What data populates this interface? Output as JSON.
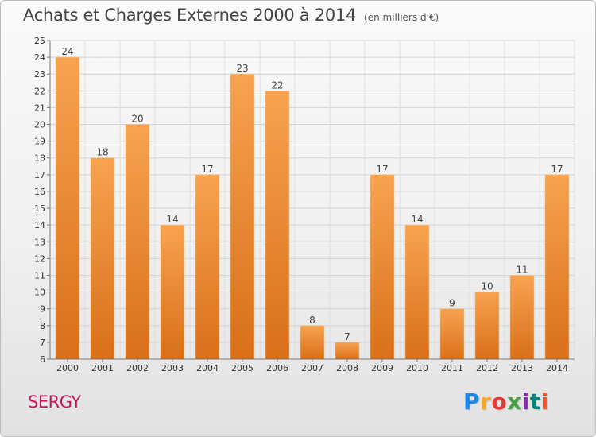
{
  "header": {
    "title": "Achats et Charges Externes 2000 à 2014",
    "subtitle": "(en milliers d'€)"
  },
  "footer": {
    "location": "SERGY",
    "logo_text": "Proxiti",
    "logo_colors": [
      "#1e88e5",
      "#f9a825",
      "#e53935",
      "#43a047",
      "#8e24aa",
      "#00897b",
      "#f4511e"
    ]
  },
  "colors": {
    "bar_top": "#f7a350",
    "bar_bottom": "#d96f19",
    "location_text": "#c2185b"
  },
  "chart_data": {
    "type": "bar",
    "categories": [
      "2000",
      "2001",
      "2002",
      "2003",
      "2004",
      "2005",
      "2006",
      "2007",
      "2008",
      "2009",
      "2010",
      "2011",
      "2012",
      "2013",
      "2014"
    ],
    "values": [
      24,
      18,
      20,
      14,
      17,
      23,
      22,
      8,
      7,
      17,
      14,
      9,
      10,
      11,
      17
    ],
    "ylim": [
      6,
      25
    ],
    "yticks": [
      6,
      7,
      8,
      9,
      10,
      11,
      12,
      13,
      14,
      15,
      16,
      17,
      18,
      19,
      20,
      21,
      22,
      23,
      24,
      25
    ],
    "grid": true,
    "data_labels": true
  }
}
